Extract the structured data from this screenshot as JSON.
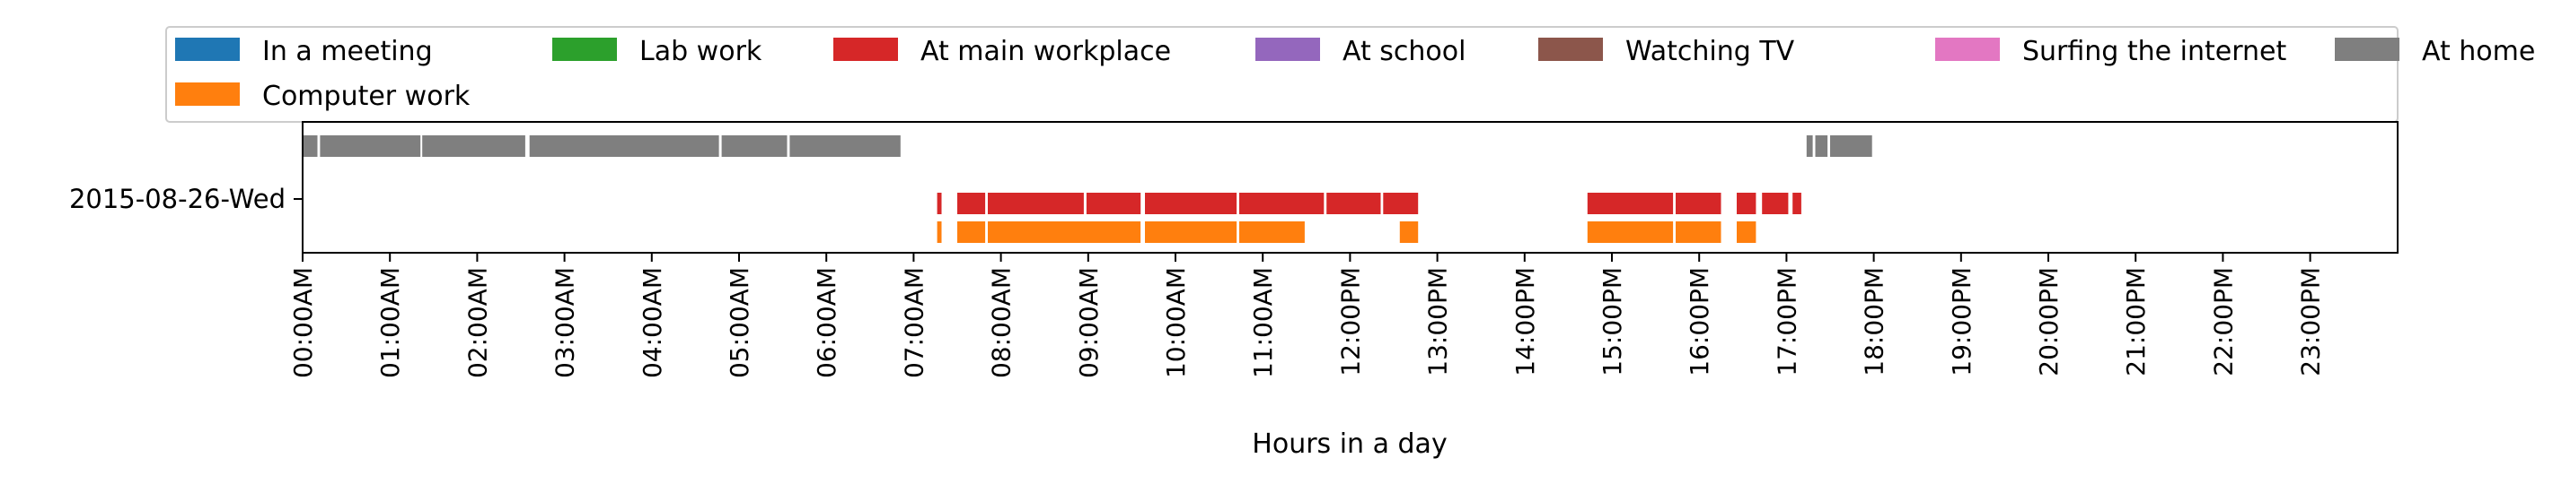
{
  "chart_data": {
    "type": "timeline",
    "xlabel": "Hours in a day",
    "ylabel": "",
    "title": "",
    "day_label": "2015-08-26-Wed",
    "xlim": [
      0,
      24
    ],
    "x_ticks": [
      "00:00AM",
      "01:00AM",
      "02:00AM",
      "03:00AM",
      "04:00AM",
      "05:00AM",
      "06:00AM",
      "07:00AM",
      "08:00AM",
      "09:00AM",
      "10:00AM",
      "11:00AM",
      "12:00PM",
      "13:00PM",
      "14:00PM",
      "15:00PM",
      "16:00PM",
      "17:00PM",
      "18:00PM",
      "19:00PM",
      "20:00PM",
      "21:00PM",
      "22:00PM",
      "23:00PM"
    ],
    "legend": {
      "placement": "top",
      "entries": [
        {
          "label": "In a meeting",
          "color": "#1f77b4"
        },
        {
          "label": "Lab work",
          "color": "#2ca02c"
        },
        {
          "label": "At main workplace",
          "color": "#d62728"
        },
        {
          "label": "At school",
          "color": "#9467bd"
        },
        {
          "label": "Watching TV",
          "color": "#8c564b"
        },
        {
          "label": "Surfing the internet",
          "color": "#e377c2"
        },
        {
          "label": "At home",
          "color": "#7f7f7f"
        },
        {
          "label": "Computer work",
          "color": "#ff7f0e"
        }
      ]
    },
    "series": [
      {
        "name": "At home",
        "color": "#7f7f7f",
        "lane": 0,
        "intervals": [
          [
            0.0,
            0.17
          ],
          [
            0.2,
            1.35
          ],
          [
            1.37,
            2.55
          ],
          [
            2.6,
            4.77
          ],
          [
            4.8,
            5.55
          ],
          [
            5.58,
            6.85
          ],
          [
            17.23,
            17.3
          ],
          [
            17.33,
            17.47
          ],
          [
            17.5,
            17.98
          ]
        ]
      },
      {
        "name": "At main workplace",
        "color": "#d62728",
        "lane": 1,
        "intervals": [
          [
            7.27,
            7.32
          ],
          [
            7.5,
            7.82
          ],
          [
            7.85,
            8.95
          ],
          [
            8.98,
            9.6
          ],
          [
            9.65,
            10.7
          ],
          [
            10.73,
            11.7
          ],
          [
            11.73,
            12.35
          ],
          [
            12.38,
            12.78
          ],
          [
            14.72,
            15.7
          ],
          [
            15.73,
            16.25
          ],
          [
            16.43,
            16.65
          ],
          [
            16.72,
            17.02
          ],
          [
            17.07,
            17.17
          ]
        ]
      },
      {
        "name": "Computer work",
        "color": "#ff7f0e",
        "lane": 2,
        "intervals": [
          [
            7.27,
            7.32
          ],
          [
            7.5,
            7.82
          ],
          [
            7.85,
            9.6
          ],
          [
            9.65,
            10.7
          ],
          [
            10.73,
            11.48
          ],
          [
            12.57,
            12.78
          ],
          [
            14.72,
            15.7
          ],
          [
            15.73,
            16.25
          ],
          [
            16.43,
            16.65
          ]
        ]
      }
    ],
    "grid": false
  }
}
